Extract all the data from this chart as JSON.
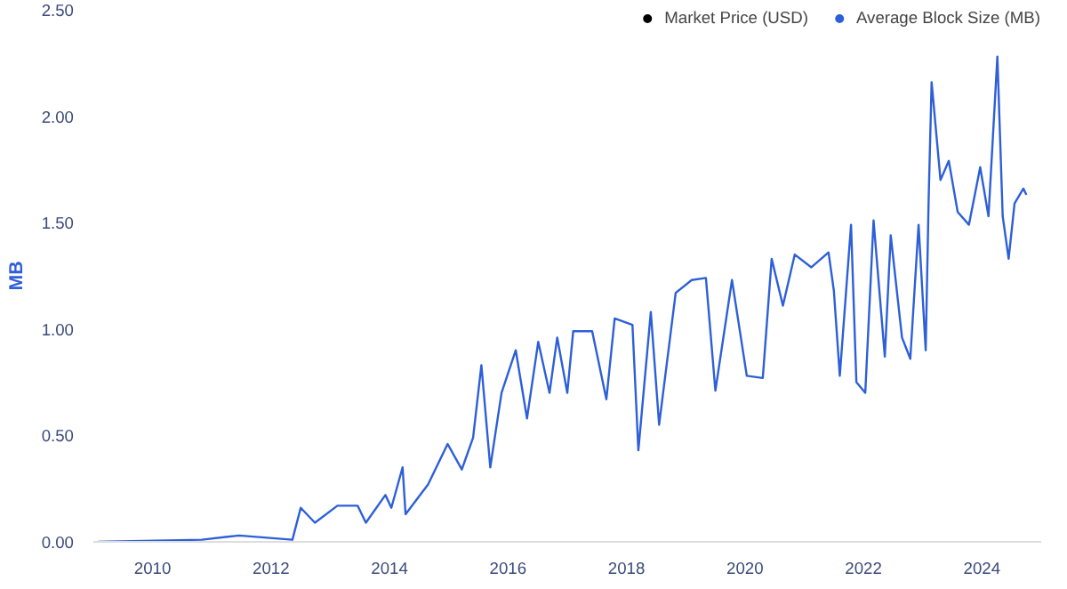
{
  "chart_data": {
    "type": "line",
    "ylabel": "MB",
    "legend": "top right",
    "grid": false,
    "xlim": [
      2009.0,
      2025.0
    ],
    "xticks": [
      2010,
      2012,
      2014,
      2016,
      2018,
      2020,
      2022,
      2024
    ],
    "ylim": [
      0,
      2.5
    ],
    "yticks": [
      {
        "value": 0,
        "label": "0.00"
      },
      {
        "value": 0.5,
        "label": "0.50"
      },
      {
        "value": 1,
        "label": "1.00"
      },
      {
        "value": 1.5,
        "label": "1.50"
      },
      {
        "value": 2,
        "label": "2.00"
      },
      {
        "value": 2.5,
        "label": "2.50"
      }
    ],
    "series": [
      {
        "name": "Market Price (USD)",
        "color": "#000000"
      },
      {
        "name": "Average Block Size (MB)",
        "color": "#2d5fd9",
        "x": [
          2009.08,
          2010.83,
          2011.46,
          2012.36,
          2012.5,
          2012.74,
          2013.12,
          2013.46,
          2013.6,
          2013.93,
          2014.03,
          2014.22,
          2014.27,
          2014.65,
          2014.98,
          2015.22,
          2015.41,
          2015.55,
          2015.7,
          2015.89,
          2016.13,
          2016.32,
          2016.51,
          2016.7,
          2016.83,
          2017.0,
          2017.1,
          2017.42,
          2017.66,
          2017.8,
          2018.1,
          2018.2,
          2018.41,
          2018.55,
          2018.83,
          2019.1,
          2019.34,
          2019.5,
          2019.78,
          2020.03,
          2020.3,
          2020.45,
          2020.64,
          2020.84,
          2021.12,
          2021.41,
          2021.5,
          2021.6,
          2021.79,
          2021.88,
          2022.03,
          2022.17,
          2022.36,
          2022.46,
          2022.65,
          2022.79,
          2022.93,
          2023.05,
          2023.1,
          2023.15,
          2023.3,
          2023.44,
          2023.59,
          2023.78,
          2023.97,
          2024.11,
          2024.26,
          2024.35,
          2024.45,
          2024.55,
          2024.7,
          2024.75
        ],
        "values": [
          0,
          0.01,
          0.03,
          0.01,
          0.16,
          0.09,
          0.17,
          0.17,
          0.09,
          0.22,
          0.16,
          0.35,
          0.13,
          0.27,
          0.46,
          0.34,
          0.49,
          0.83,
          0.35,
          0.7,
          0.9,
          0.58,
          0.94,
          0.7,
          0.96,
          0.7,
          0.99,
          0.99,
          0.67,
          1.05,
          1.02,
          0.43,
          1.08,
          0.55,
          1.17,
          1.23,
          1.24,
          0.71,
          1.23,
          0.78,
          0.77,
          1.33,
          1.11,
          1.35,
          1.29,
          1.36,
          1.18,
          0.78,
          1.49,
          0.75,
          0.7,
          1.51,
          0.87,
          1.44,
          0.96,
          0.86,
          1.49,
          0.9,
          1.61,
          2.16,
          1.7,
          1.79,
          1.55,
          1.49,
          1.76,
          1.53,
          2.28,
          1.53,
          1.33,
          1.59,
          1.66,
          1.63
        ]
      }
    ]
  }
}
